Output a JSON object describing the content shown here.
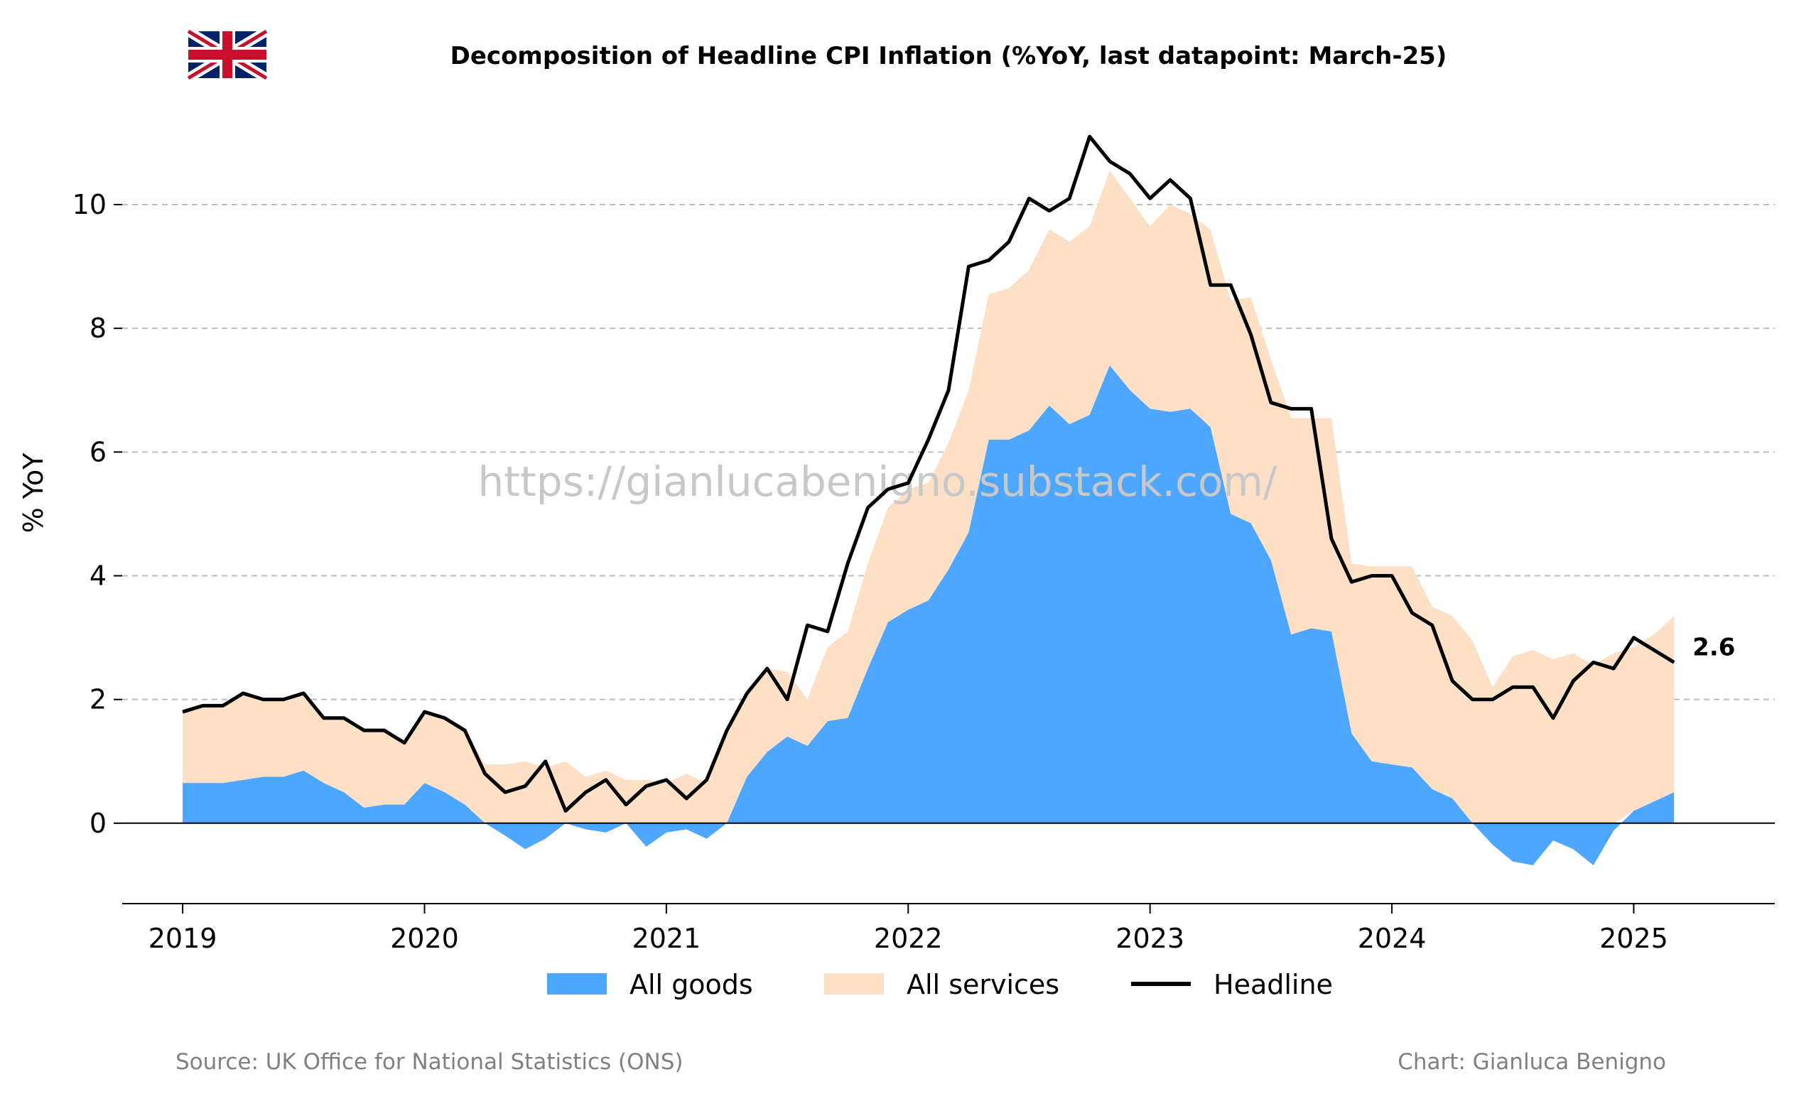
{
  "colors": {
    "goods": "#4da6ff",
    "services": "#fde0c5",
    "headline": "#000000",
    "grid": "#bdbdbd",
    "watermark": "#c8c8c8",
    "footer": "#808080"
  },
  "flag_icon": "uk-flag-icon",
  "watermark": "https://gianlucabenigno.substack.com/",
  "footer": {
    "source": "Source: UK Office for National Statistics (ONS)",
    "credit": "Chart: Gianluca Benigno"
  },
  "chart_data": {
    "type": "area",
    "title": "Decomposition of Headline CPI Inflation (%YoY, last datapoint: March-25)",
    "xlabel": "",
    "ylabel": "% YoY",
    "xlim": [
      "2018-10",
      "2025-08"
    ],
    "ylim": [
      -1.3,
      11.7
    ],
    "x_ticks": [
      "2019",
      "2020",
      "2021",
      "2022",
      "2023",
      "2024",
      "2025"
    ],
    "y_ticks": [
      0,
      2,
      4,
      6,
      8,
      10
    ],
    "y_gridlines": [
      2,
      4,
      6,
      8,
      10
    ],
    "grid": true,
    "legend_position": "bottom-center",
    "last_value_label": "2.6",
    "x": [
      "2019-01",
      "2019-02",
      "2019-03",
      "2019-04",
      "2019-05",
      "2019-06",
      "2019-07",
      "2019-08",
      "2019-09",
      "2019-10",
      "2019-11",
      "2019-12",
      "2020-01",
      "2020-02",
      "2020-03",
      "2020-04",
      "2020-05",
      "2020-06",
      "2020-07",
      "2020-08",
      "2020-09",
      "2020-10",
      "2020-11",
      "2020-12",
      "2021-01",
      "2021-02",
      "2021-03",
      "2021-04",
      "2021-05",
      "2021-06",
      "2021-07",
      "2021-08",
      "2021-09",
      "2021-10",
      "2021-11",
      "2021-12",
      "2022-01",
      "2022-02",
      "2022-03",
      "2022-04",
      "2022-05",
      "2022-06",
      "2022-07",
      "2022-08",
      "2022-09",
      "2022-10",
      "2022-11",
      "2022-12",
      "2023-01",
      "2023-02",
      "2023-03",
      "2023-04",
      "2023-05",
      "2023-06",
      "2023-07",
      "2023-08",
      "2023-09",
      "2023-10",
      "2023-11",
      "2023-12",
      "2024-01",
      "2024-02",
      "2024-03",
      "2024-04",
      "2024-05",
      "2024-06",
      "2024-07",
      "2024-08",
      "2024-09",
      "2024-10",
      "2024-11",
      "2024-12",
      "2025-01",
      "2025-02",
      "2025-03"
    ],
    "series": [
      {
        "name": "All goods",
        "values": [
          0.65,
          0.65,
          0.65,
          0.7,
          0.75,
          0.75,
          0.85,
          0.65,
          0.5,
          0.25,
          0.3,
          0.3,
          0.65,
          0.5,
          0.3,
          0.0,
          -0.2,
          -0.42,
          -0.25,
          0.0,
          -0.1,
          -0.15,
          0.0,
          -0.38,
          -0.15,
          -0.1,
          -0.25,
          0.0,
          0.75,
          1.15,
          1.4,
          1.25,
          1.65,
          1.7,
          2.5,
          3.25,
          3.45,
          3.6,
          4.1,
          4.7,
          6.2,
          6.2,
          6.35,
          6.75,
          6.45,
          6.6,
          7.4,
          7.0,
          6.7,
          6.65,
          6.7,
          6.4,
          5.0,
          4.85,
          4.25,
          3.05,
          3.15,
          3.1,
          1.45,
          1.0,
          0.95,
          0.9,
          0.55,
          0.4,
          0.0,
          -0.35,
          -0.62,
          -0.68,
          -0.28,
          -0.42,
          -0.68,
          -0.12,
          0.2,
          0.35,
          0.5
        ]
      },
      {
        "name": "All services",
        "values": [
          1.15,
          1.25,
          1.25,
          1.4,
          1.25,
          1.25,
          1.25,
          1.05,
          1.2,
          1.25,
          1.2,
          1.0,
          1.15,
          1.2,
          1.2,
          0.95,
          0.95,
          1.0,
          0.9,
          1.0,
          0.75,
          0.85,
          0.7,
          0.7,
          0.65,
          0.8,
          0.65,
          1.45,
          1.35,
          1.35,
          1.05,
          0.75,
          1.2,
          1.4,
          1.7,
          1.85,
          1.95,
          1.9,
          2.05,
          2.3,
          2.35,
          2.45,
          2.6,
          2.85,
          2.95,
          3.05,
          3.15,
          3.1,
          2.95,
          3.35,
          3.15,
          3.2,
          3.45,
          3.65,
          3.25,
          3.5,
          3.4,
          3.45,
          2.75,
          3.15,
          3.2,
          3.25,
          2.95,
          2.95,
          2.95,
          2.2,
          2.7,
          2.8,
          2.65,
          2.75,
          2.55,
          2.75,
          2.65,
          2.7,
          2.85
        ]
      },
      {
        "name": "Headline",
        "values": [
          1.8,
          1.9,
          1.9,
          2.1,
          2.0,
          2.0,
          2.1,
          1.7,
          1.7,
          1.5,
          1.5,
          1.3,
          1.8,
          1.7,
          1.5,
          0.8,
          0.5,
          0.6,
          1.0,
          0.2,
          0.5,
          0.7,
          0.3,
          0.6,
          0.7,
          0.4,
          0.7,
          1.5,
          2.1,
          2.5,
          2.0,
          3.2,
          3.1,
          4.2,
          5.1,
          5.4,
          5.5,
          6.2,
          7.0,
          9.0,
          9.1,
          9.4,
          10.1,
          9.9,
          10.1,
          11.1,
          10.7,
          10.5,
          10.1,
          10.4,
          10.1,
          8.7,
          8.7,
          7.9,
          6.8,
          6.7,
          6.7,
          4.6,
          3.9,
          4.0,
          4.0,
          3.4,
          3.2,
          2.3,
          2.0,
          2.0,
          2.2,
          2.2,
          1.7,
          2.3,
          2.6,
          2.5,
          3.0,
          2.8,
          2.6
        ]
      }
    ]
  }
}
